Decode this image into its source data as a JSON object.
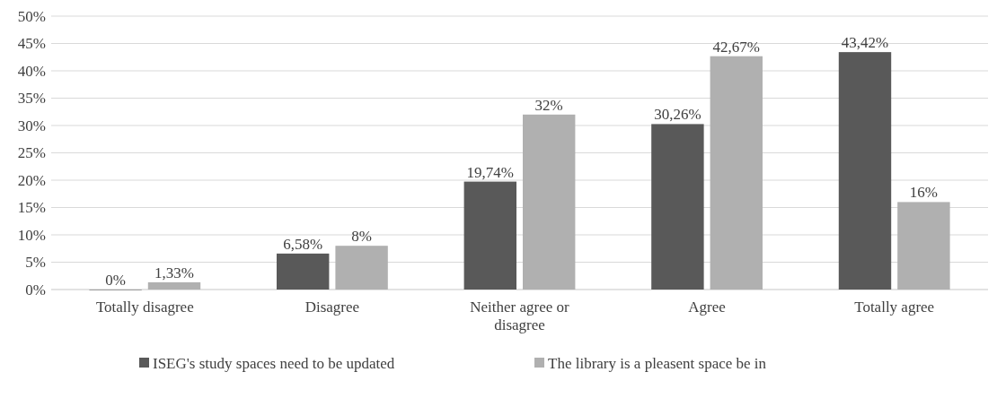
{
  "chart_data": {
    "type": "bar",
    "categories": [
      "Totally disagree",
      "Disagree",
      "Neither agree or disagree",
      "Agree",
      "Totally agree"
    ],
    "series": [
      {
        "name": "ISEG's study spaces need to be updated",
        "color": "#595959",
        "values": [
          0,
          6.58,
          19.74,
          30.26,
          43.42
        ],
        "value_labels": [
          "0%",
          "6,58%",
          "19,74%",
          "30,26%",
          "43,42%"
        ]
      },
      {
        "name": "The library is a pleasent space be in",
        "color": "#b0b0b0",
        "values": [
          1.33,
          8,
          32,
          42.67,
          16
        ],
        "value_labels": [
          "1,33%",
          "8%",
          "32%",
          "42,67%",
          "16%"
        ]
      }
    ],
    "ylim": [
      0,
      50
    ],
    "yticks": [
      {
        "value": 0,
        "label": "0%"
      },
      {
        "value": 5,
        "label": "5%"
      },
      {
        "value": 10,
        "label": "10%"
      },
      {
        "value": 15,
        "label": "15%"
      },
      {
        "value": 20,
        "label": "20%"
      },
      {
        "value": 25,
        "label": "25%"
      },
      {
        "value": 30,
        "label": "30%"
      },
      {
        "value": 35,
        "label": "35%"
      },
      {
        "value": 40,
        "label": "40%"
      },
      {
        "value": 45,
        "label": "45%"
      },
      {
        "value": 50,
        "label": "50%"
      }
    ],
    "grid": "y",
    "legend": "bottom"
  }
}
